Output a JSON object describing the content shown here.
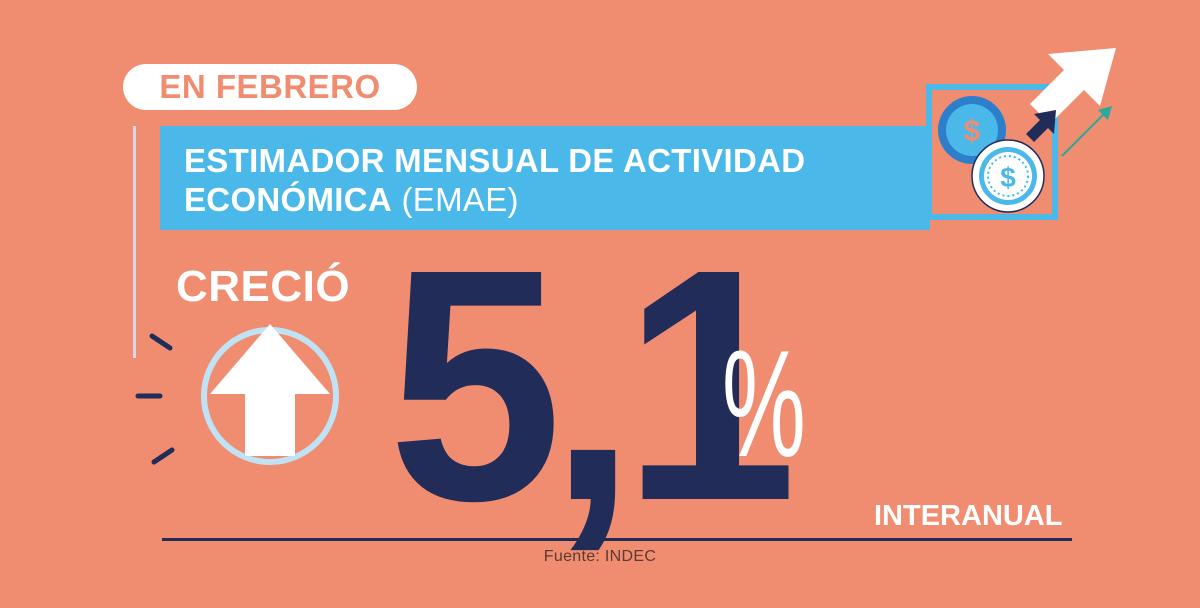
{
  "header": {
    "pill_text": "EN FEBRERO",
    "title_line1": "ESTIMADOR MENSUAL DE ACTIVIDAD",
    "title_line2_bold": "ECONÓMICA",
    "title_line2_rest": " (EMAE)"
  },
  "stat": {
    "label": "CRECIÓ",
    "value": "5,1",
    "unit": "%",
    "period": "INTERANUAL"
  },
  "footer": {
    "source": "Fuente: INDEC"
  },
  "icons": [
    "coin-dollar-icon",
    "trend-arrow-icon",
    "up-arrow-circle-icon"
  ],
  "colors": {
    "background": "#F08D70",
    "banner": "#4AB8E8",
    "navy": "#222C59",
    "white": "#FFFFFF",
    "light_blue": "#BFE3F5"
  }
}
